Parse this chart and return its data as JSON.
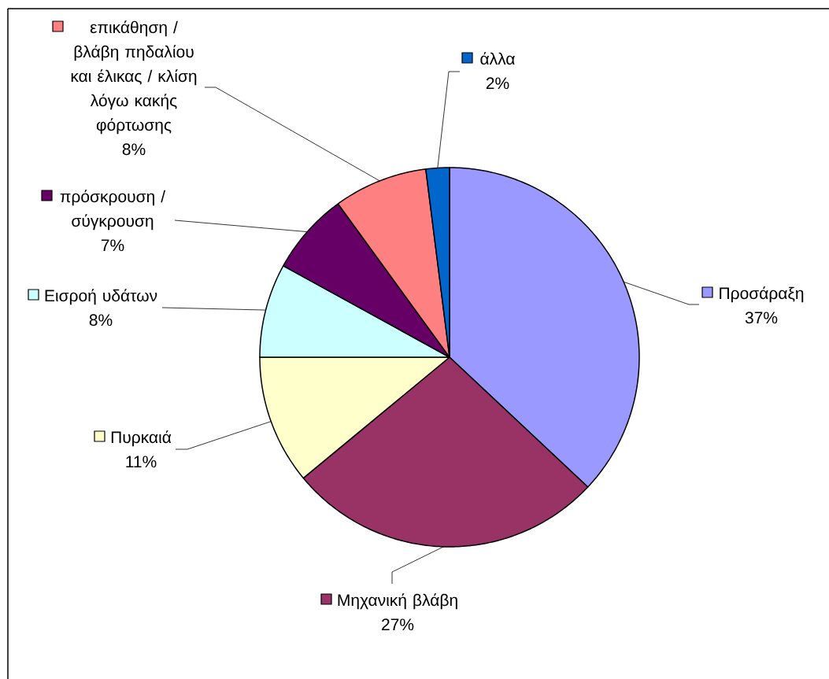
{
  "chart_data": {
    "type": "pie",
    "categories": [
      "Προσάραξη",
      "Μηχανική βλάβη",
      "Πυρκαιά",
      "Εισροή υδάτων",
      "πρόσκρουση / σύγκρουση",
      "επικάθηση / βλάβη πηδαλίου και έλικας / κλίση λόγω κακής φόρτωσης",
      "άλλα"
    ],
    "values": [
      37,
      27,
      11,
      8,
      7,
      8,
      2
    ],
    "colors": [
      "#9999ff",
      "#993366",
      "#ffffcc",
      "#ccffff",
      "#660066",
      "#ff8080",
      "#0066cc"
    ],
    "value_labels": [
      "37%",
      "27%",
      "11%",
      "8%",
      "7%",
      "8%",
      "2%"
    ],
    "legend": "left"
  }
}
